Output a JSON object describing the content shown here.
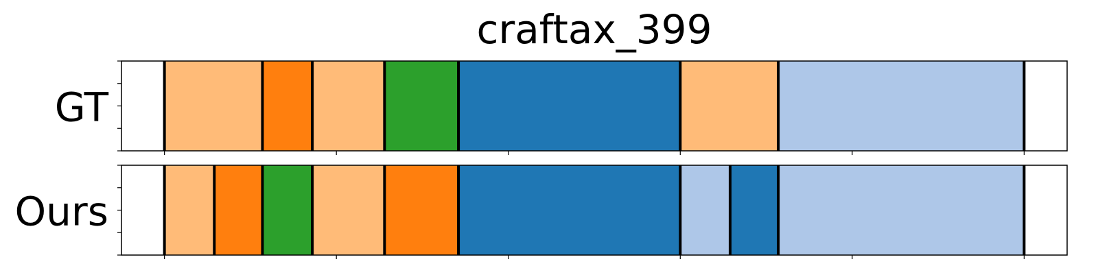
{
  "chart_data": {
    "type": "segmentation",
    "title": "craftax_399",
    "x_range": [
      -25,
      525
    ],
    "x_ticks": [
      0,
      100,
      200,
      300,
      400,
      500
    ],
    "grid": false,
    "legend": "none",
    "rows": [
      {
        "label": "GT",
        "segments": [
          {
            "start": 0,
            "end": 57,
            "color": "#ffbb78"
          },
          {
            "start": 57,
            "end": 86,
            "color": "#ff7f0e"
          },
          {
            "start": 86,
            "end": 128,
            "color": "#ffbb78"
          },
          {
            "start": 128,
            "end": 171,
            "color": "#2ca02c"
          },
          {
            "start": 171,
            "end": 300,
            "color": "#1f77b4"
          },
          {
            "start": 300,
            "end": 357,
            "color": "#ffbb78"
          },
          {
            "start": 357,
            "end": 500,
            "color": "#aec7e8"
          }
        ]
      },
      {
        "label": "Ours",
        "segments": [
          {
            "start": 0,
            "end": 29,
            "color": "#ffbb78"
          },
          {
            "start": 29,
            "end": 57,
            "color": "#ff7f0e"
          },
          {
            "start": 57,
            "end": 86,
            "color": "#2ca02c"
          },
          {
            "start": 86,
            "end": 128,
            "color": "#ffbb78"
          },
          {
            "start": 128,
            "end": 171,
            "color": "#ff7f0e"
          },
          {
            "start": 171,
            "end": 300,
            "color": "#1f77b4"
          },
          {
            "start": 300,
            "end": 329,
            "color": "#aec7e8"
          },
          {
            "start": 329,
            "end": 357,
            "color": "#1f77b4"
          },
          {
            "start": 357,
            "end": 500,
            "color": "#aec7e8"
          }
        ]
      }
    ]
  }
}
